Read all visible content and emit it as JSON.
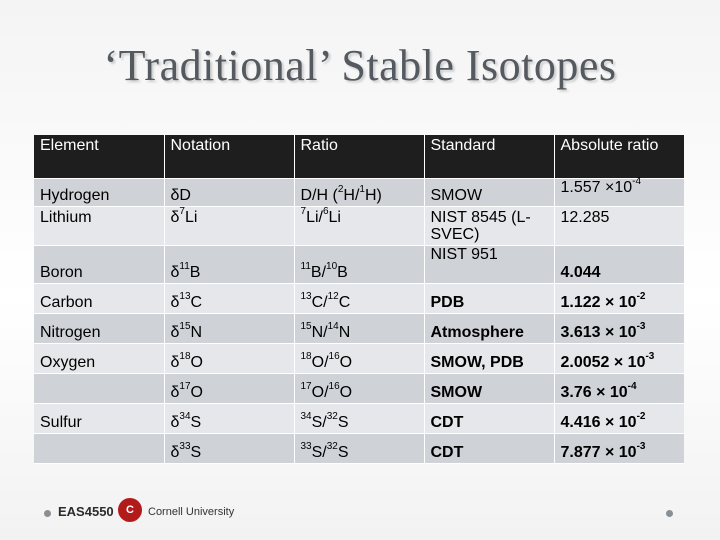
{
  "title": "‘Traditional’ Stable Isotopes",
  "rows": [
    {
      "cells": [
        {
          "t": "Element"
        },
        {
          "t": "Notation"
        },
        {
          "t": "Ratio"
        },
        {
          "t": "Standard"
        },
        {
          "t": "Absolute ratio"
        }
      ]
    },
    {
      "cells": [
        {
          "t": "Hydrogen"
        },
        {
          "t": "δD"
        },
        {
          "t": "D/H (",
          "sup1": "2",
          "t2": "H/",
          "sup2": "1",
          "t3": "H)"
        },
        {
          "t": "SMOW"
        },
        {
          "t": "1.557 ×10",
          "sup1": "-4"
        }
      ]
    },
    {
      "cells": [
        {
          "t": "Lithium"
        },
        {
          "t": "δ",
          "sup1": "7",
          "t2": "Li"
        },
        {
          "sup0": "7",
          "t": "Li/",
          "sup1": "6",
          "t2": "Li"
        },
        {
          "t": "NIST 8545 (L-SVEC)"
        },
        {
          "t": "12.285"
        }
      ]
    },
    {
      "cells": [
        {
          "t": "Boron"
        },
        {
          "t": "δ",
          "sup1": "11",
          "t2": "B"
        },
        {
          "sup0": "11",
          "t": "B/",
          "sup1": "10",
          "t2": "B"
        },
        {
          "t": "NIST 951"
        },
        {
          "t": "4.044"
        }
      ]
    },
    {
      "cells": [
        {
          "t": "Carbon"
        },
        {
          "t": "δ",
          "sup1": "13",
          "t2": "C"
        },
        {
          "sup0": "13",
          "t": "C/",
          "sup1": "12",
          "t2": "C"
        },
        {
          "t": "PDB"
        },
        {
          "t": "1.122 × 10",
          "sup1": "-2"
        }
      ]
    },
    {
      "cells": [
        {
          "t": "Nitrogen"
        },
        {
          "t": "δ",
          "sup1": "15",
          "t2": "N"
        },
        {
          "sup0": "15",
          "t": "N/",
          "sup1": "14",
          "t2": "N"
        },
        {
          "t": "Atmosphere"
        },
        {
          "t": "3.613 × 10",
          "sup1": "-3"
        }
      ]
    },
    {
      "cells": [
        {
          "t": "Oxygen"
        },
        {
          "t": "δ",
          "sup1": "18",
          "t2": "O"
        },
        {
          "sup0": "18",
          "t": "O/",
          "sup1": "16",
          "t2": "O"
        },
        {
          "t": "SMOW, PDB"
        },
        {
          "t": "2.0052 × 10",
          "sup1": "-3"
        }
      ]
    },
    {
      "cells": [
        {
          "t": ""
        },
        {
          "t": "δ",
          "sup1": "17",
          "t2": "O"
        },
        {
          "sup0": "17",
          "t": "O/",
          "sup1": "16",
          "t2": "O"
        },
        {
          "t": "SMOW"
        },
        {
          "t": "3.76 × 10",
          "sup1": "-4"
        }
      ]
    },
    {
      "cells": [
        {
          "t": "Sulfur"
        },
        {
          "t": "δ",
          "sup1": "34",
          "t2": "S"
        },
        {
          "sup0": "34",
          "t": "S/",
          "sup1": "32",
          "t2": "S"
        },
        {
          "t": "CDT"
        },
        {
          "t": "4.416 × 10",
          "sup1": "-2"
        }
      ]
    },
    {
      "cells": [
        {
          "t": ""
        },
        {
          "t": "δ",
          "sup1": "33",
          "t2": "S"
        },
        {
          "sup0": "33",
          "t": "S/",
          "sup1": "32",
          "t2": "S"
        },
        {
          "t": "CDT"
        },
        {
          "t": "7.877 × 10",
          "sup1": "-3"
        }
      ]
    }
  ],
  "footer": {
    "course": "EAS4550",
    "university": "Cornell University",
    "seal_icon": "cornell-seal-icon",
    "accent": "#b31b1b"
  }
}
